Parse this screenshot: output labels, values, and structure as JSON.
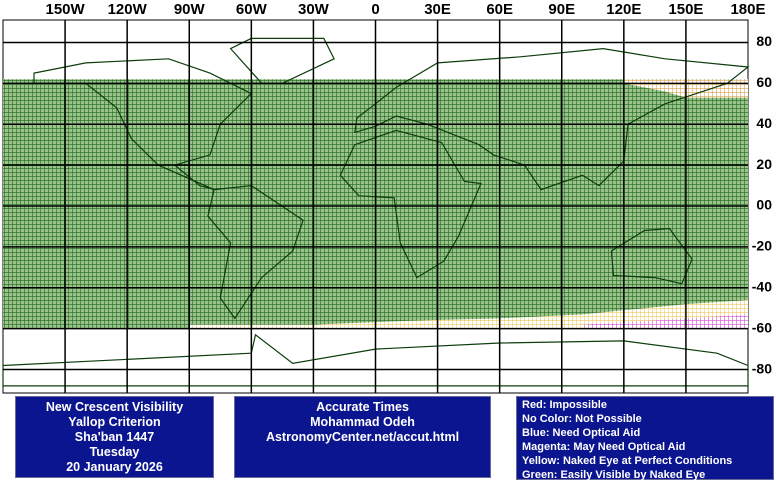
{
  "map": {
    "lon_labels": [
      "150W",
      "120W",
      "90W",
      "60W",
      "30W",
      "0",
      "30E",
      "60E",
      "90E",
      "120E",
      "150E",
      "180E"
    ],
    "lat_labels": [
      "80",
      "60",
      "40",
      "20",
      "00",
      "-20",
      "-40",
      "-60",
      "-80"
    ]
  },
  "info_box": {
    "lines": [
      "New Crescent Visibility",
      "Yallop Criterion",
      "Sha'ban 1447",
      "Tuesday",
      "20 January 2026"
    ]
  },
  "credit_box": {
    "lines": [
      "Accurate Times",
      "Mohammad Odeh",
      "AstronomyCenter.net/accut.html"
    ]
  },
  "legend_box": {
    "lines": [
      "Red: Impossible",
      "No Color: Not Possible",
      "Blue: Need Optical Aid",
      "Magenta: May Need Optical Aid",
      "Yellow: Naked Eye at Perfect Conditions",
      "Green: Easily Visible by Naked Eye"
    ]
  }
}
